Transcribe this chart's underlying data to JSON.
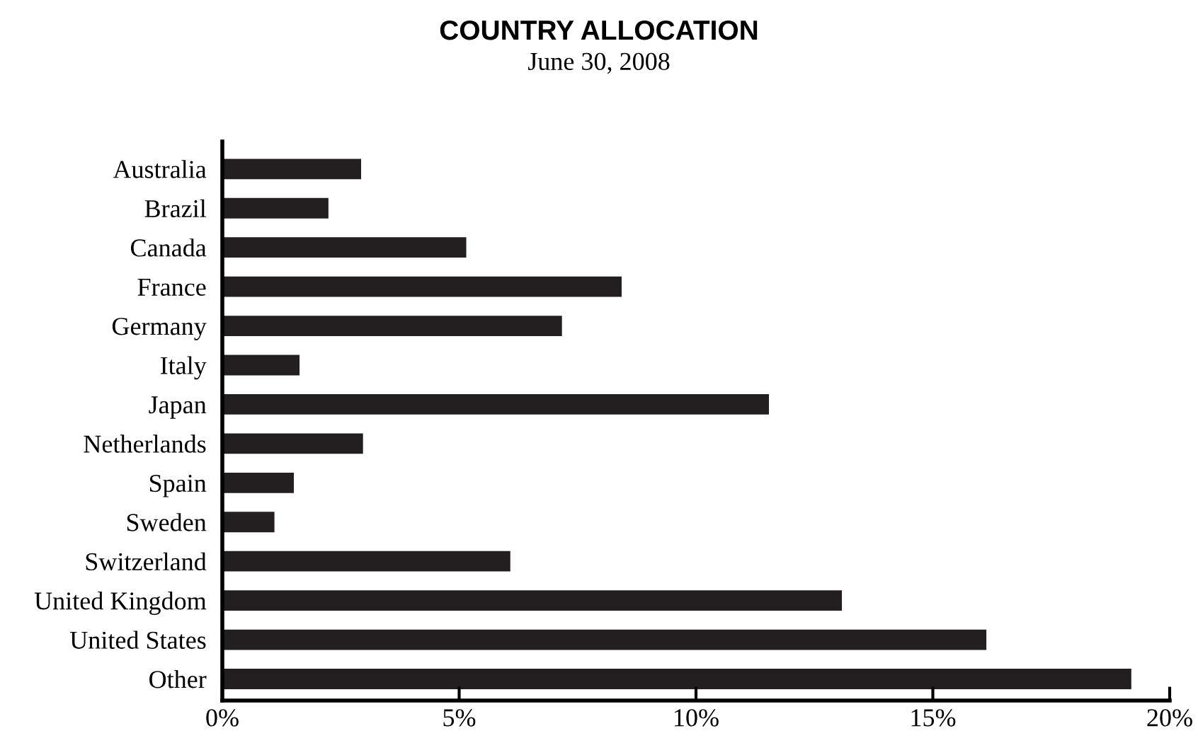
{
  "chart_data": {
    "type": "bar",
    "orientation": "horizontal",
    "title": "COUNTRY ALLOCATION",
    "subtitle": "June 30, 2008",
    "categories": [
      "Australia",
      "Brazil",
      "Canada",
      "France",
      "Germany",
      "Italy",
      "Japan",
      "Netherlands",
      "Spain",
      "Sweden",
      "Switzerland",
      "United Kingdom",
      "United States",
      "Other"
    ],
    "values": [
      2.93,
      2.24,
      5.15,
      8.43,
      7.17,
      1.63,
      11.54,
      2.97,
      1.51,
      1.1,
      6.08,
      13.08,
      16.13,
      19.19
    ],
    "color": "#231f20",
    "xlim": [
      0,
      20
    ],
    "xticks": [
      {
        "value": 0,
        "label": "0%"
      },
      {
        "value": 5,
        "label": "5%"
      },
      {
        "value": 10,
        "label": "10%"
      },
      {
        "value": 15,
        "label": "15%"
      },
      {
        "value": 20,
        "label": "20%"
      }
    ],
    "grid": false,
    "legend": false
  }
}
